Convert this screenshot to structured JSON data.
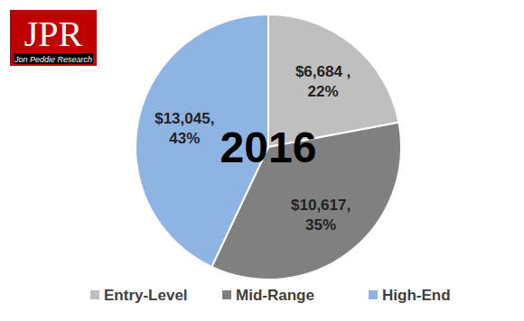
{
  "chart_data": {
    "type": "pie",
    "title": "2016",
    "categories": [
      "Entry-Level",
      "Mid-Range",
      "High-End"
    ],
    "values": [
      6684,
      10617,
      13045
    ],
    "percentages": [
      22,
      35,
      43
    ],
    "value_labels": [
      [
        "$6,684 ,",
        "22%"
      ],
      [
        "$10,617,",
        "35%"
      ],
      [
        "$13,045,",
        "43%"
      ]
    ],
    "colors": [
      "#bfbfbf",
      "#808080",
      "#8eb4e3"
    ],
    "data_labels": true,
    "legend": "bottom",
    "annotations": [
      "JPR",
      "Jon Peddie Research"
    ]
  }
}
